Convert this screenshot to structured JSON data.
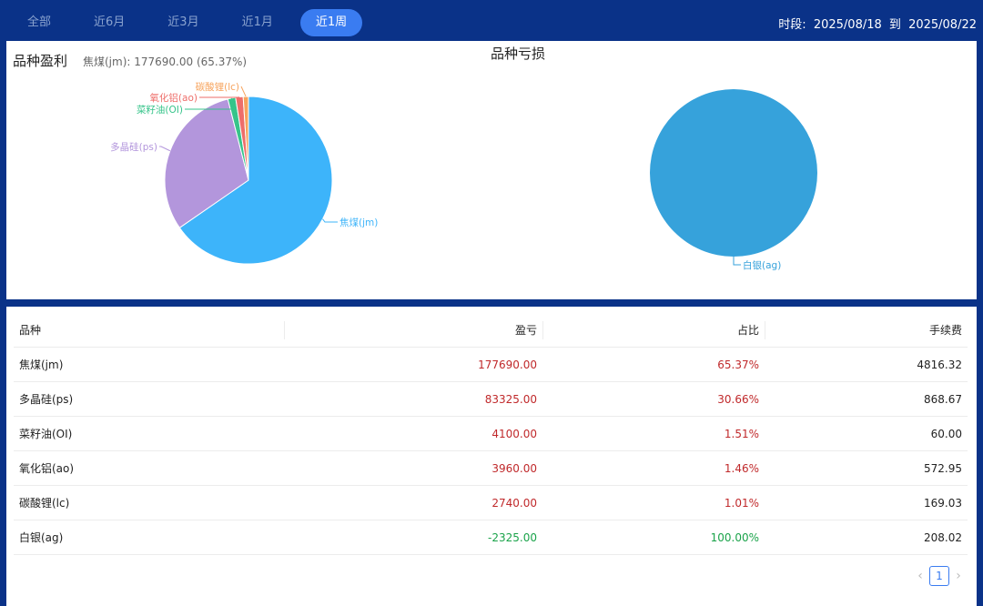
{
  "tabs": [
    {
      "label": "全部"
    },
    {
      "label": "近6月"
    },
    {
      "label": "近3月"
    },
    {
      "label": "近1月"
    },
    {
      "label": "近1周",
      "active": true
    }
  ],
  "period": {
    "label": "时段:",
    "start": "2025/08/18",
    "sep": "到",
    "end": "2025/08/22"
  },
  "profit_chart": {
    "title": "品种盈利",
    "subtitle": "焦煤(jm): 177690.00 (65.37%)"
  },
  "loss_chart": {
    "title": "品种亏损"
  },
  "chart_data": [
    {
      "type": "pie",
      "title": "品种盈利",
      "categories": [
        "焦煤(jm)",
        "多晶硅(ps)",
        "菜籽油(OI)",
        "氧化铝(ao)",
        "碳酸锂(lc)"
      ],
      "values": [
        177690.0,
        83325.0,
        4100.0,
        3960.0,
        2740.0
      ],
      "colors": [
        "#3db4fa",
        "#b396dc",
        "#36c48a",
        "#ee6e6a",
        "#f7a35c"
      ]
    },
    {
      "type": "pie",
      "title": "品种亏损",
      "categories": [
        "白银(ag)"
      ],
      "values": [
        2325.0
      ],
      "colors": [
        "#36a2db"
      ]
    }
  ],
  "table": {
    "headers": [
      "品种",
      "盈亏",
      "占比",
      "手续费"
    ],
    "rows": [
      {
        "name": "焦煤(jm)",
        "pnl": "177690.00",
        "ratio": "65.37%",
        "fee": "4816.32",
        "sign": "pos"
      },
      {
        "name": "多晶硅(ps)",
        "pnl": "83325.00",
        "ratio": "30.66%",
        "fee": "868.67",
        "sign": "pos"
      },
      {
        "name": "菜籽油(OI)",
        "pnl": "4100.00",
        "ratio": "1.51%",
        "fee": "60.00",
        "sign": "pos"
      },
      {
        "name": "氧化铝(ao)",
        "pnl": "3960.00",
        "ratio": "1.46%",
        "fee": "572.95",
        "sign": "pos"
      },
      {
        "name": "碳酸锂(lc)",
        "pnl": "2740.00",
        "ratio": "1.01%",
        "fee": "169.03",
        "sign": "pos"
      },
      {
        "name": "白银(ag)",
        "pnl": "-2325.00",
        "ratio": "100.00%",
        "fee": "208.02",
        "sign": "neg"
      }
    ]
  },
  "pagination": {
    "current": "1",
    "prev_icon": "chevron-left-icon",
    "next_icon": "chevron-right-icon"
  }
}
